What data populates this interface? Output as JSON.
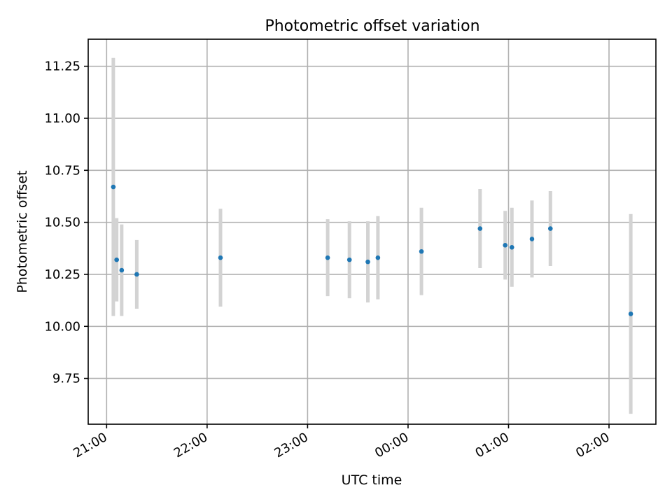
{
  "chart_data": {
    "type": "scatter",
    "title": "Photometric offset variation",
    "xlabel": "UTC time",
    "ylabel": "Photometric offset",
    "xlim": [
      "20:49",
      "02:28"
    ],
    "ylim": [
      9.53,
      11.38
    ],
    "xticks": [
      "21:00",
      "22:00",
      "23:00",
      "00:00",
      "01:00",
      "02:00"
    ],
    "yticks": [
      "9.75",
      "10.00",
      "10.25",
      "10.50",
      "10.75",
      "11.00",
      "11.25"
    ],
    "grid": true,
    "series": [
      {
        "marker_color": "#1f77b4",
        "errorbar_color": "#d3d3d3",
        "points": [
          {
            "x": "21:04",
            "y": 10.67,
            "err": 0.62
          },
          {
            "x": "21:06",
            "y": 10.32,
            "err": 0.2
          },
          {
            "x": "21:09",
            "y": 10.27,
            "err": 0.22
          },
          {
            "x": "21:18",
            "y": 10.25,
            "err": 0.165
          },
          {
            "x": "22:08",
            "y": 10.33,
            "err": 0.235
          },
          {
            "x": "23:12",
            "y": 10.33,
            "err": 0.185
          },
          {
            "x": "23:25",
            "y": 10.32,
            "err": 0.185
          },
          {
            "x": "23:36",
            "y": 10.31,
            "err": 0.195
          },
          {
            "x": "23:42",
            "y": 10.33,
            "err": 0.2
          },
          {
            "x": "00:08",
            "y": 10.36,
            "err": 0.21
          },
          {
            "x": "00:43",
            "y": 10.47,
            "err": 0.19
          },
          {
            "x": "00:58",
            "y": 10.39,
            "err": 0.165
          },
          {
            "x": "01:02",
            "y": 10.38,
            "err": 0.19
          },
          {
            "x": "01:14",
            "y": 10.42,
            "err": 0.185
          },
          {
            "x": "01:25",
            "y": 10.47,
            "err": 0.18
          },
          {
            "x": "02:13",
            "y": 10.06,
            "err": 0.48
          }
        ]
      }
    ]
  }
}
